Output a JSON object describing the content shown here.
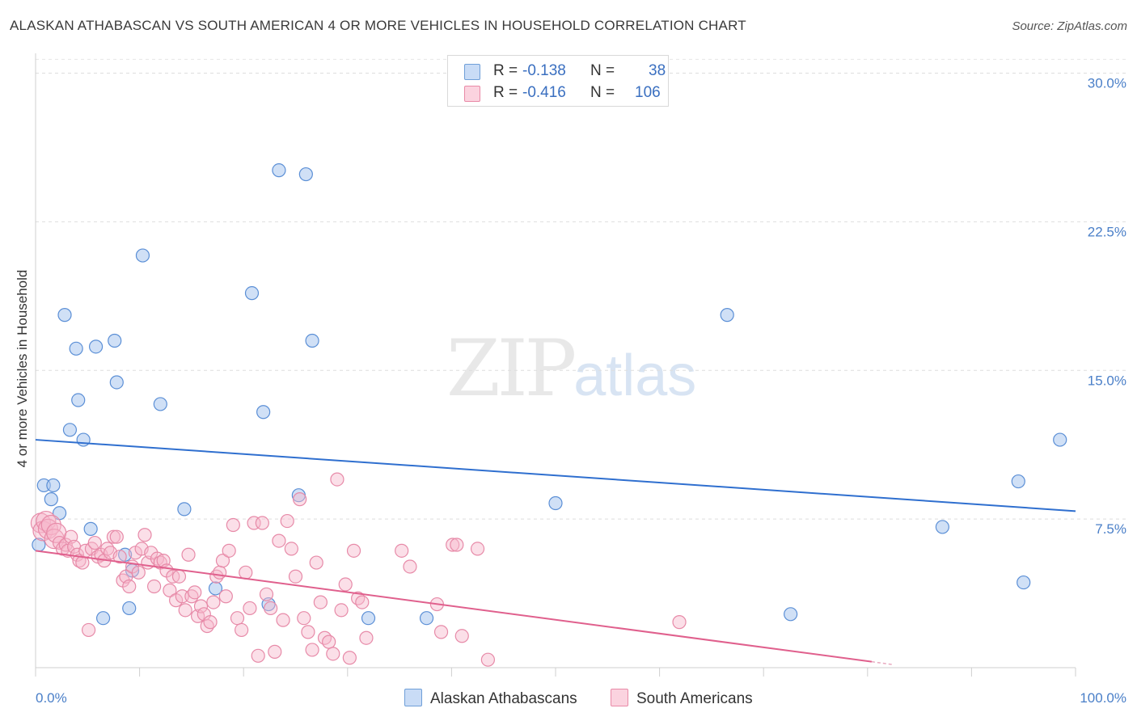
{
  "header": {
    "title": "ALASKAN ATHABASCAN VS SOUTH AMERICAN 4 OR MORE VEHICLES IN HOUSEHOLD CORRELATION CHART",
    "source": "Source: ZipAtlas.com"
  },
  "watermark": {
    "zip": "ZIP",
    "atlas": "atlas"
  },
  "legend": {
    "rows": [
      {
        "r_label": "R =",
        "r_value": "-0.138",
        "n_label": "N =",
        "n_value": "38",
        "color": "#a9c6ef",
        "stroke": "#6f9fd8"
      },
      {
        "r_label": "R =",
        "r_value": "-0.416",
        "n_label": "N =",
        "n_value": "106",
        "color": "#f7b9cc",
        "stroke": "#e98aa7"
      }
    ]
  },
  "bottom_legend": {
    "series1": "Alaskan Athabascans",
    "series2": "South Americans"
  },
  "chart_data": {
    "type": "scatter",
    "title": "ALASKAN ATHABASCAN VS SOUTH AMERICAN 4 OR MORE VEHICLES IN HOUSEHOLD CORRELATION CHART",
    "xlabel": "",
    "ylabel": "4 or more Vehicles in Household",
    "xlim": [
      0,
      100
    ],
    "ylim": [
      0,
      31
    ],
    "x_tick_labels": {
      "left": "0.0%",
      "right": "100.0%"
    },
    "y_ticks": [
      {
        "value": 7.5,
        "label": "7.5%"
      },
      {
        "value": 15.0,
        "label": "15.0%"
      },
      {
        "value": 22.5,
        "label": "22.5%"
      },
      {
        "value": 30.0,
        "label": "30.0%"
      }
    ],
    "series": [
      {
        "name": "Alaskan Athabascans",
        "color": "#a9c6ef",
        "stroke": "#5b8fd6",
        "line_color": "#2f6fcf",
        "trend": {
          "x0": 0,
          "y0": 11.5,
          "x1": 100,
          "y1": 7.9
        },
        "points": [
          [
            0.3,
            6.2
          ],
          [
            0.8,
            9.2
          ],
          [
            1.5,
            8.5
          ],
          [
            1.7,
            9.2
          ],
          [
            2.3,
            7.8
          ],
          [
            2.8,
            17.8
          ],
          [
            3.3,
            12.0
          ],
          [
            3.9,
            16.1
          ],
          [
            4.1,
            13.5
          ],
          [
            4.6,
            11.5
          ],
          [
            5.3,
            7.0
          ],
          [
            5.8,
            16.2
          ],
          [
            6.5,
            2.5
          ],
          [
            7.6,
            16.5
          ],
          [
            7.8,
            14.4
          ],
          [
            8.6,
            5.7
          ],
          [
            9.0,
            3.0
          ],
          [
            9.3,
            4.9
          ],
          [
            10.3,
            20.8
          ],
          [
            12.0,
            13.3
          ],
          [
            14.3,
            8.0
          ],
          [
            17.3,
            4.0
          ],
          [
            20.8,
            18.9
          ],
          [
            21.9,
            12.9
          ],
          [
            22.4,
            3.2
          ],
          [
            23.4,
            25.1
          ],
          [
            25.3,
            8.7
          ],
          [
            26.0,
            24.9
          ],
          [
            26.6,
            16.5
          ],
          [
            32.0,
            2.5
          ],
          [
            37.6,
            2.5
          ],
          [
            50.0,
            8.3
          ],
          [
            66.5,
            17.8
          ],
          [
            72.6,
            2.7
          ],
          [
            87.2,
            7.1
          ],
          [
            94.5,
            9.4
          ],
          [
            95.0,
            4.3
          ],
          [
            98.5,
            11.5
          ]
        ]
      },
      {
        "name": "South Americans",
        "color": "#f7b9cc",
        "stroke": "#e78aa8",
        "line_color": "#e0608d",
        "trend": {
          "x0": 0,
          "y0": 5.9,
          "x1": 80.4,
          "y1": 0.3
        },
        "points": [
          [
            0.5,
            7.3
          ],
          [
            0.7,
            6.9
          ],
          [
            1.0,
            7.4
          ],
          [
            1.2,
            7.0
          ],
          [
            1.5,
            7.2
          ],
          [
            1.8,
            6.5
          ],
          [
            2.0,
            6.8
          ],
          [
            2.3,
            6.3
          ],
          [
            2.6,
            6.0
          ],
          [
            2.9,
            6.2
          ],
          [
            3.1,
            5.9
          ],
          [
            3.4,
            6.6
          ],
          [
            3.7,
            6.1
          ],
          [
            4.0,
            5.7
          ],
          [
            4.2,
            5.4
          ],
          [
            4.5,
            5.3
          ],
          [
            4.8,
            5.9
          ],
          [
            5.1,
            1.9
          ],
          [
            5.4,
            6.0
          ],
          [
            5.7,
            6.3
          ],
          [
            6.0,
            5.6
          ],
          [
            6.3,
            5.7
          ],
          [
            6.6,
            5.4
          ],
          [
            6.9,
            6.0
          ],
          [
            7.2,
            5.8
          ],
          [
            7.5,
            6.6
          ],
          [
            7.8,
            6.6
          ],
          [
            8.1,
            5.6
          ],
          [
            8.4,
            4.4
          ],
          [
            8.7,
            4.6
          ],
          [
            9.0,
            4.1
          ],
          [
            9.3,
            5.1
          ],
          [
            9.6,
            5.8
          ],
          [
            9.9,
            4.8
          ],
          [
            10.2,
            6.0
          ],
          [
            10.5,
            6.7
          ],
          [
            10.8,
            5.3
          ],
          [
            11.1,
            5.8
          ],
          [
            11.4,
            4.1
          ],
          [
            11.7,
            5.5
          ],
          [
            12.0,
            5.3
          ],
          [
            12.3,
            5.4
          ],
          [
            12.6,
            4.9
          ],
          [
            12.9,
            3.9
          ],
          [
            13.2,
            4.6
          ],
          [
            13.5,
            3.4
          ],
          [
            13.8,
            4.6
          ],
          [
            14.1,
            3.6
          ],
          [
            14.4,
            2.9
          ],
          [
            14.7,
            5.7
          ],
          [
            15.0,
            3.6
          ],
          [
            15.3,
            3.8
          ],
          [
            15.6,
            2.6
          ],
          [
            15.9,
            3.1
          ],
          [
            16.2,
            2.7
          ],
          [
            16.5,
            2.1
          ],
          [
            16.8,
            2.3
          ],
          [
            17.1,
            3.3
          ],
          [
            17.4,
            4.6
          ],
          [
            17.7,
            4.8
          ],
          [
            18.0,
            5.4
          ],
          [
            18.3,
            3.6
          ],
          [
            18.6,
            5.9
          ],
          [
            19.0,
            7.2
          ],
          [
            19.4,
            2.5
          ],
          [
            19.8,
            1.9
          ],
          [
            20.2,
            4.8
          ],
          [
            20.6,
            3.0
          ],
          [
            21.0,
            7.3
          ],
          [
            21.4,
            0.6
          ],
          [
            21.8,
            7.3
          ],
          [
            22.2,
            3.7
          ],
          [
            22.6,
            3.0
          ],
          [
            23.0,
            0.8
          ],
          [
            23.4,
            6.4
          ],
          [
            23.8,
            2.4
          ],
          [
            24.2,
            7.4
          ],
          [
            24.6,
            6.0
          ],
          [
            25.0,
            4.6
          ],
          [
            25.4,
            8.5
          ],
          [
            25.8,
            2.5
          ],
          [
            26.2,
            1.8
          ],
          [
            26.6,
            0.9
          ],
          [
            27.0,
            5.3
          ],
          [
            27.4,
            3.3
          ],
          [
            27.8,
            1.5
          ],
          [
            28.2,
            1.3
          ],
          [
            28.6,
            0.7
          ],
          [
            29.0,
            9.5
          ],
          [
            29.4,
            2.9
          ],
          [
            29.8,
            4.2
          ],
          [
            30.2,
            0.5
          ],
          [
            30.6,
            5.9
          ],
          [
            31.0,
            3.5
          ],
          [
            31.4,
            3.3
          ],
          [
            31.8,
            1.5
          ],
          [
            35.2,
            5.9
          ],
          [
            36.0,
            5.1
          ],
          [
            38.6,
            3.2
          ],
          [
            39.0,
            1.8
          ],
          [
            40.1,
            6.2
          ],
          [
            40.5,
            6.2
          ],
          [
            41.0,
            1.6
          ],
          [
            42.5,
            6.0
          ],
          [
            43.5,
            0.4
          ],
          [
            61.9,
            2.3
          ]
        ]
      }
    ]
  }
}
